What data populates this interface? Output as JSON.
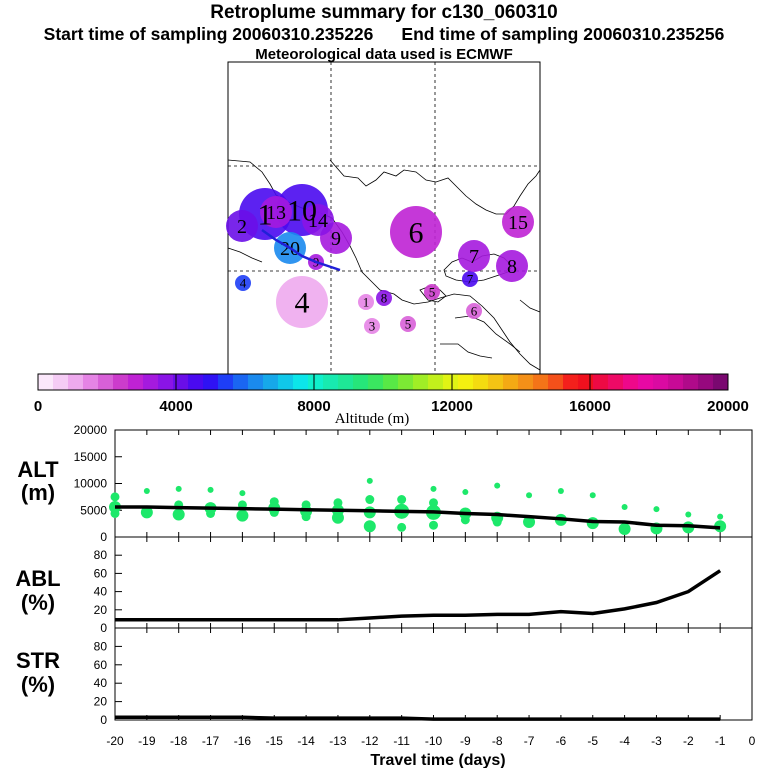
{
  "header": {
    "title": "Retroplume summary for c130_060310",
    "start_label": "Start time of sampling 20060310.235226",
    "end_label": "End time of sampling 20060310.235256",
    "met_label": "Meteorological data used is ECMWF"
  },
  "colorbar": {
    "label": "Altitude (m)",
    "ticks": [
      "0",
      "4000",
      "8000",
      "12000",
      "16000",
      "20000"
    ],
    "colors": [
      "#fbe8fb",
      "#f5ccf5",
      "#eeaaee",
      "#e584e5",
      "#d860d8",
      "#cc3ccc",
      "#bf22d4",
      "#a51ade",
      "#8a14e6",
      "#6a0ee8",
      "#4a0af0",
      "#2f12f4",
      "#1e3ef6",
      "#1a66f2",
      "#1a8aee",
      "#16a8ea",
      "#10c8ea",
      "#0ce6ea",
      "#10f0cc",
      "#18eab0",
      "#1ee896",
      "#26e67a",
      "#3ae660",
      "#58e846",
      "#7cea34",
      "#a0ee26",
      "#c2f01c",
      "#e0f414",
      "#f4f010",
      "#f4dc10",
      "#f4c414",
      "#f4aa14",
      "#f49018",
      "#f47418",
      "#f4501a",
      "#f4201c",
      "#f0101e",
      "#ee0a44",
      "#ee0a66",
      "#ee088a",
      "#e808a4",
      "#da0aa2",
      "#c80a96",
      "#b00a8a",
      "#96087e",
      "#7a0870"
    ]
  },
  "map": {
    "markers": [
      {
        "label": "1",
        "color": "#4a0af0",
        "size": "large"
      },
      {
        "label": "2",
        "color": "#6a0ee8",
        "size": "medium"
      },
      {
        "label": "3",
        "color": "#e584e5",
        "size": "small"
      },
      {
        "label": "4",
        "color": "#1e3ef6",
        "size": "small"
      },
      {
        "label": "4",
        "color": "#eeaaee",
        "size": "large"
      },
      {
        "label": "5",
        "color": "#cc3ccc",
        "size": "small"
      },
      {
        "label": "6",
        "color": "#d860d8",
        "size": "small"
      },
      {
        "label": "6",
        "color": "#bf22d4",
        "size": "large"
      },
      {
        "label": "7",
        "color": "#4a0af0",
        "size": "small"
      },
      {
        "label": "7",
        "color": "#a51ade",
        "size": "medium"
      },
      {
        "label": "8",
        "color": "#a51ade",
        "size": "medium"
      },
      {
        "label": "9",
        "color": "#a51ade",
        "size": "medium"
      },
      {
        "label": "10",
        "color": "#4a0af0",
        "size": "large"
      },
      {
        "label": "13",
        "color": "#a51ade",
        "size": "medium"
      },
      {
        "label": "14",
        "color": "#8a14e6",
        "size": "medium"
      },
      {
        "label": "15",
        "color": "#bf22d4",
        "size": "medium"
      },
      {
        "label": "20",
        "color": "#1a8aee",
        "size": "medium"
      },
      {
        "label": "9",
        "color": "#a51ade",
        "size": "small"
      },
      {
        "label": "8",
        "color": "#8a14e6",
        "size": "small"
      },
      {
        "label": "5",
        "color": "#d860d8",
        "size": "small"
      },
      {
        "label": "1",
        "color": "#e584e5",
        "size": "small"
      }
    ]
  },
  "chart_data": [
    {
      "type": "line",
      "title": "ALT (m)",
      "ylabel": "ALT (m)",
      "ylim": [
        0,
        20000
      ],
      "yticks": [
        "0",
        "5000",
        "10000",
        "15000",
        "20000"
      ],
      "x": [
        -20,
        -19,
        -18,
        -17,
        -16,
        -15,
        -14,
        -13,
        -12,
        -11,
        -10,
        -9,
        -8,
        -7,
        -6,
        -5,
        -4,
        -3,
        -2,
        -1
      ],
      "series": [
        {
          "name": "mean altitude",
          "values": [
            5600,
            5600,
            5500,
            5400,
            5300,
            5200,
            5100,
            5000,
            4900,
            4800,
            4700,
            4400,
            4200,
            3800,
            3400,
            2900,
            2800,
            2200,
            2100,
            1700
          ]
        }
      ],
      "scatter": {
        "name": "altitude distribution",
        "x": [
          -20,
          -20,
          -20,
          -19,
          -19,
          -18,
          -18,
          -18,
          -17,
          -17,
          -17,
          -16,
          -16,
          -16,
          -15,
          -15,
          -15,
          -14,
          -14,
          -14,
          -13,
          -13,
          -13,
          -12,
          -12,
          -12,
          -12,
          -11,
          -11,
          -11,
          -10,
          -10,
          -10,
          -10,
          -9,
          -9,
          -9,
          -8,
          -8,
          -8,
          -7,
          -7,
          -6,
          -6,
          -5,
          -5,
          -4,
          -4,
          -3,
          -3,
          -2,
          -2,
          -1,
          -1
        ],
        "y": [
          7500,
          5600,
          4400,
          8600,
          4600,
          9000,
          6000,
          4200,
          8800,
          5400,
          4400,
          8200,
          6000,
          4000,
          6600,
          5400,
          4600,
          6000,
          4800,
          3800,
          6400,
          5000,
          3600,
          10500,
          7000,
          4600,
          2000,
          7000,
          4800,
          1800,
          9000,
          6400,
          4600,
          2200,
          8400,
          4400,
          3200,
          9600,
          3600,
          2800,
          7800,
          2800,
          8600,
          3200,
          7800,
          2600,
          5600,
          1500,
          5200,
          1600,
          4200,
          1800,
          3800,
          2000
        ],
        "size": [
          2,
          3,
          2,
          1,
          3,
          1,
          2,
          3,
          1,
          3,
          2,
          1,
          2,
          3,
          2,
          3,
          2,
          2,
          3,
          2,
          2,
          3,
          3,
          1,
          2,
          3,
          3,
          2,
          4,
          2,
          1,
          2,
          4,
          2,
          1,
          3,
          2,
          1,
          3,
          2,
          1,
          3,
          1,
          3,
          1,
          3,
          1,
          3,
          1,
          3,
          1,
          3,
          1,
          3
        ],
        "color": "#1de86a"
      },
      "xlim": [
        -20,
        0
      ]
    },
    {
      "type": "line",
      "title": "ABL (%)",
      "ylabel": "ABL (%)",
      "ylim": [
        0,
        100
      ],
      "yticks": [
        "0",
        "20",
        "40",
        "60",
        "80"
      ],
      "x": [
        -20,
        -19,
        -18,
        -17,
        -16,
        -15,
        -14,
        -13,
        -12,
        -11,
        -10,
        -9,
        -8,
        -7,
        -6,
        -5,
        -4,
        -3,
        -2,
        -1
      ],
      "series": [
        {
          "name": "ABL fraction",
          "values": [
            9,
            9,
            9,
            9,
            9,
            9,
            9,
            9,
            11,
            13,
            14,
            14,
            15,
            15,
            18,
            16,
            21,
            28,
            40,
            63
          ]
        }
      ],
      "xlim": [
        -20,
        0
      ]
    },
    {
      "type": "line",
      "title": "STR (%)",
      "ylabel": "STR (%)",
      "ylim": [
        0,
        100
      ],
      "yticks": [
        "0",
        "20",
        "40",
        "60",
        "80"
      ],
      "x": [
        -20,
        -19,
        -18,
        -17,
        -16,
        -15,
        -14,
        -13,
        -12,
        -11,
        -10,
        -9,
        -8,
        -7,
        -6,
        -5,
        -4,
        -3,
        -2,
        -1
      ],
      "series": [
        {
          "name": "STR fraction",
          "values": [
            3,
            3,
            3,
            3,
            3,
            2,
            2,
            2,
            2,
            2,
            1,
            1,
            1,
            1,
            1,
            1,
            1,
            1,
            1,
            1
          ]
        }
      ],
      "xlabel": "Travel time (days)",
      "xticks": [
        "-20",
        "-19",
        "-18",
        "-17",
        "-16",
        "-15",
        "-14",
        "-13",
        "-12",
        "-11",
        "-10",
        "-9",
        "-8",
        "-7",
        "-6",
        "-5",
        "-4",
        "-3",
        "-2",
        "-1",
        "0"
      ],
      "xlim": [
        -20,
        0
      ]
    }
  ],
  "panels": {
    "alt_label_top": "ALT",
    "alt_label_bottom": "(m)",
    "abl_label_top": "ABL",
    "abl_label_bottom": "(%)",
    "str_label_top": "STR",
    "str_label_bottom": "(%)"
  }
}
